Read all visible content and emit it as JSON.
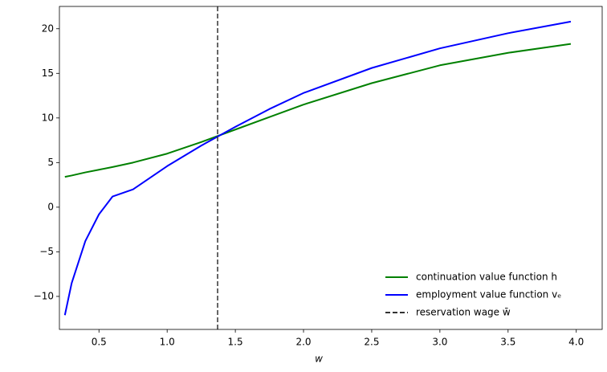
{
  "chart_data": {
    "type": "line",
    "x_label": "w",
    "x": [
      0.25,
      0.3,
      0.4,
      0.5,
      0.6,
      0.75,
      1.0,
      1.25,
      1.5,
      1.75,
      2.0,
      2.5,
      3.0,
      3.5,
      3.96
    ],
    "series": [
      {
        "name": "continuation value function h",
        "color": "#008000",
        "values": [
          3.4,
          3.55,
          3.9,
          4.2,
          4.5,
          5.0,
          6.0,
          7.3,
          8.7,
          10.1,
          11.5,
          13.9,
          15.9,
          17.3,
          18.3
        ]
      },
      {
        "name": "employment value function vₑ",
        "color": "#0000ff",
        "values": [
          -12.1,
          -8.5,
          -3.8,
          -0.8,
          1.2,
          2.0,
          4.6,
          6.9,
          9.0,
          11.0,
          12.8,
          15.6,
          17.8,
          19.5,
          20.8
        ]
      }
    ],
    "reference_line": {
      "name": "reservation wage w̄",
      "x": 1.37,
      "color": "#333333"
    },
    "xlim": [
      0.21,
      4.19
    ],
    "ylim": [
      -13.7,
      22.5
    ],
    "xticks": [
      {
        "value": 0.5,
        "label": "0.5"
      },
      {
        "value": 1.0,
        "label": "1.0"
      },
      {
        "value": 1.5,
        "label": "1.5"
      },
      {
        "value": 2.0,
        "label": "2.0"
      },
      {
        "value": 2.5,
        "label": "2.5"
      },
      {
        "value": 3.0,
        "label": "3.0"
      },
      {
        "value": 3.5,
        "label": "3.5"
      },
      {
        "value": 4.0,
        "label": "4.0"
      }
    ],
    "yticks": [
      {
        "value": -10,
        "label": "−10"
      },
      {
        "value": -5,
        "label": "−5"
      },
      0,
      5,
      10,
      15,
      20
    ],
    "legend": "lower right"
  }
}
